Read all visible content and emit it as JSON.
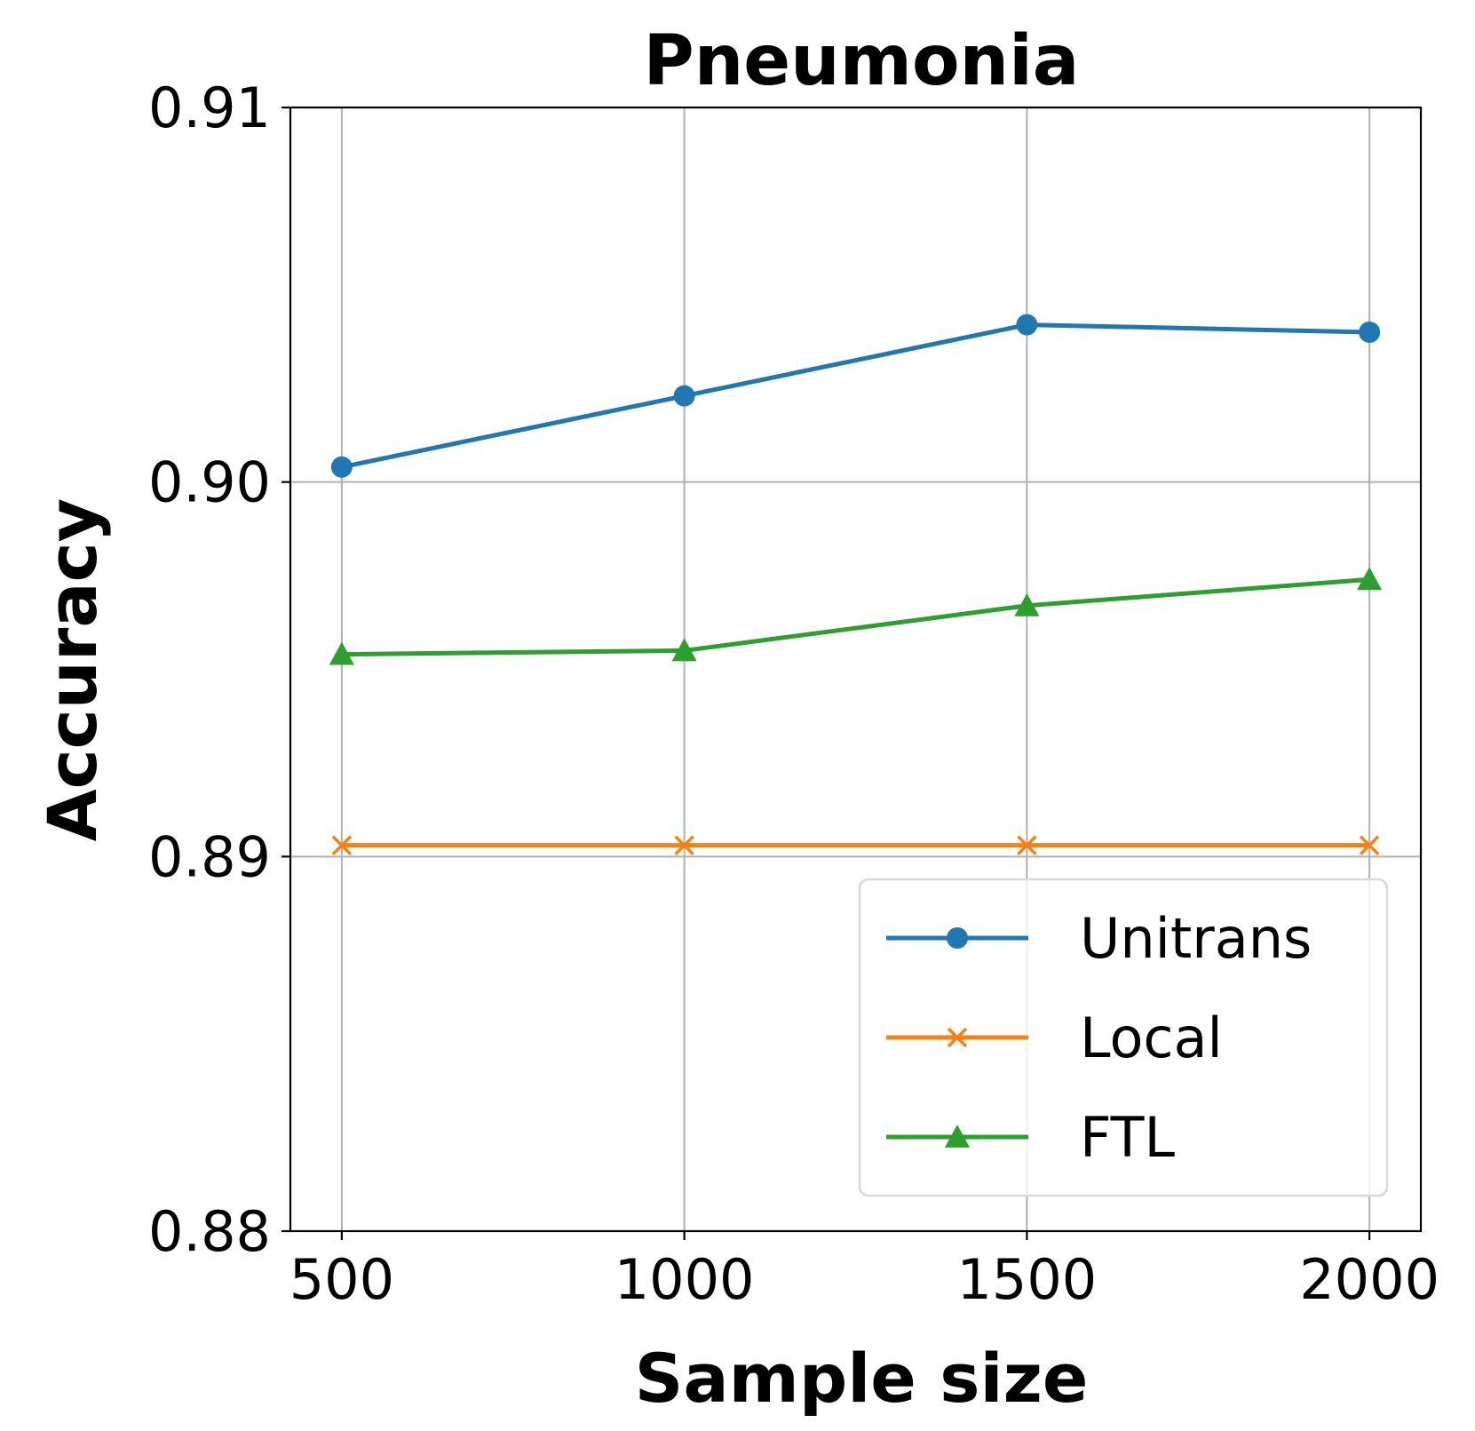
{
  "chart_data": {
    "type": "line",
    "title": "Pneumonia",
    "xlabel": "Sample size",
    "ylabel": "Accuracy",
    "x": [
      500,
      1000,
      1500,
      2000
    ],
    "x_tick_labels": [
      "500",
      "1000",
      "1500",
      "2000"
    ],
    "xlim": [
      425,
      2075
    ],
    "ylim": [
      0.88,
      0.91
    ],
    "y_ticks": [
      0.88,
      0.89,
      0.9,
      0.91
    ],
    "y_tick_labels": [
      "0.88",
      "0.89",
      "0.90",
      "0.91"
    ],
    "grid": true,
    "legend_position": "lower-right",
    "series": [
      {
        "name": "Unitrans",
        "color": "#1f77b4",
        "marker": "circle",
        "values": [
          0.9004,
          0.9023,
          0.9042,
          0.904
        ]
      },
      {
        "name": "Local",
        "color": "#ff7f0e",
        "marker": "x",
        "values": [
          0.8903,
          0.8903,
          0.8903,
          0.8903
        ]
      },
      {
        "name": "FTL",
        "color": "#2ca02c",
        "marker": "triangle",
        "values": [
          0.8954,
          0.8955,
          0.8967,
          0.8974
        ]
      }
    ]
  }
}
